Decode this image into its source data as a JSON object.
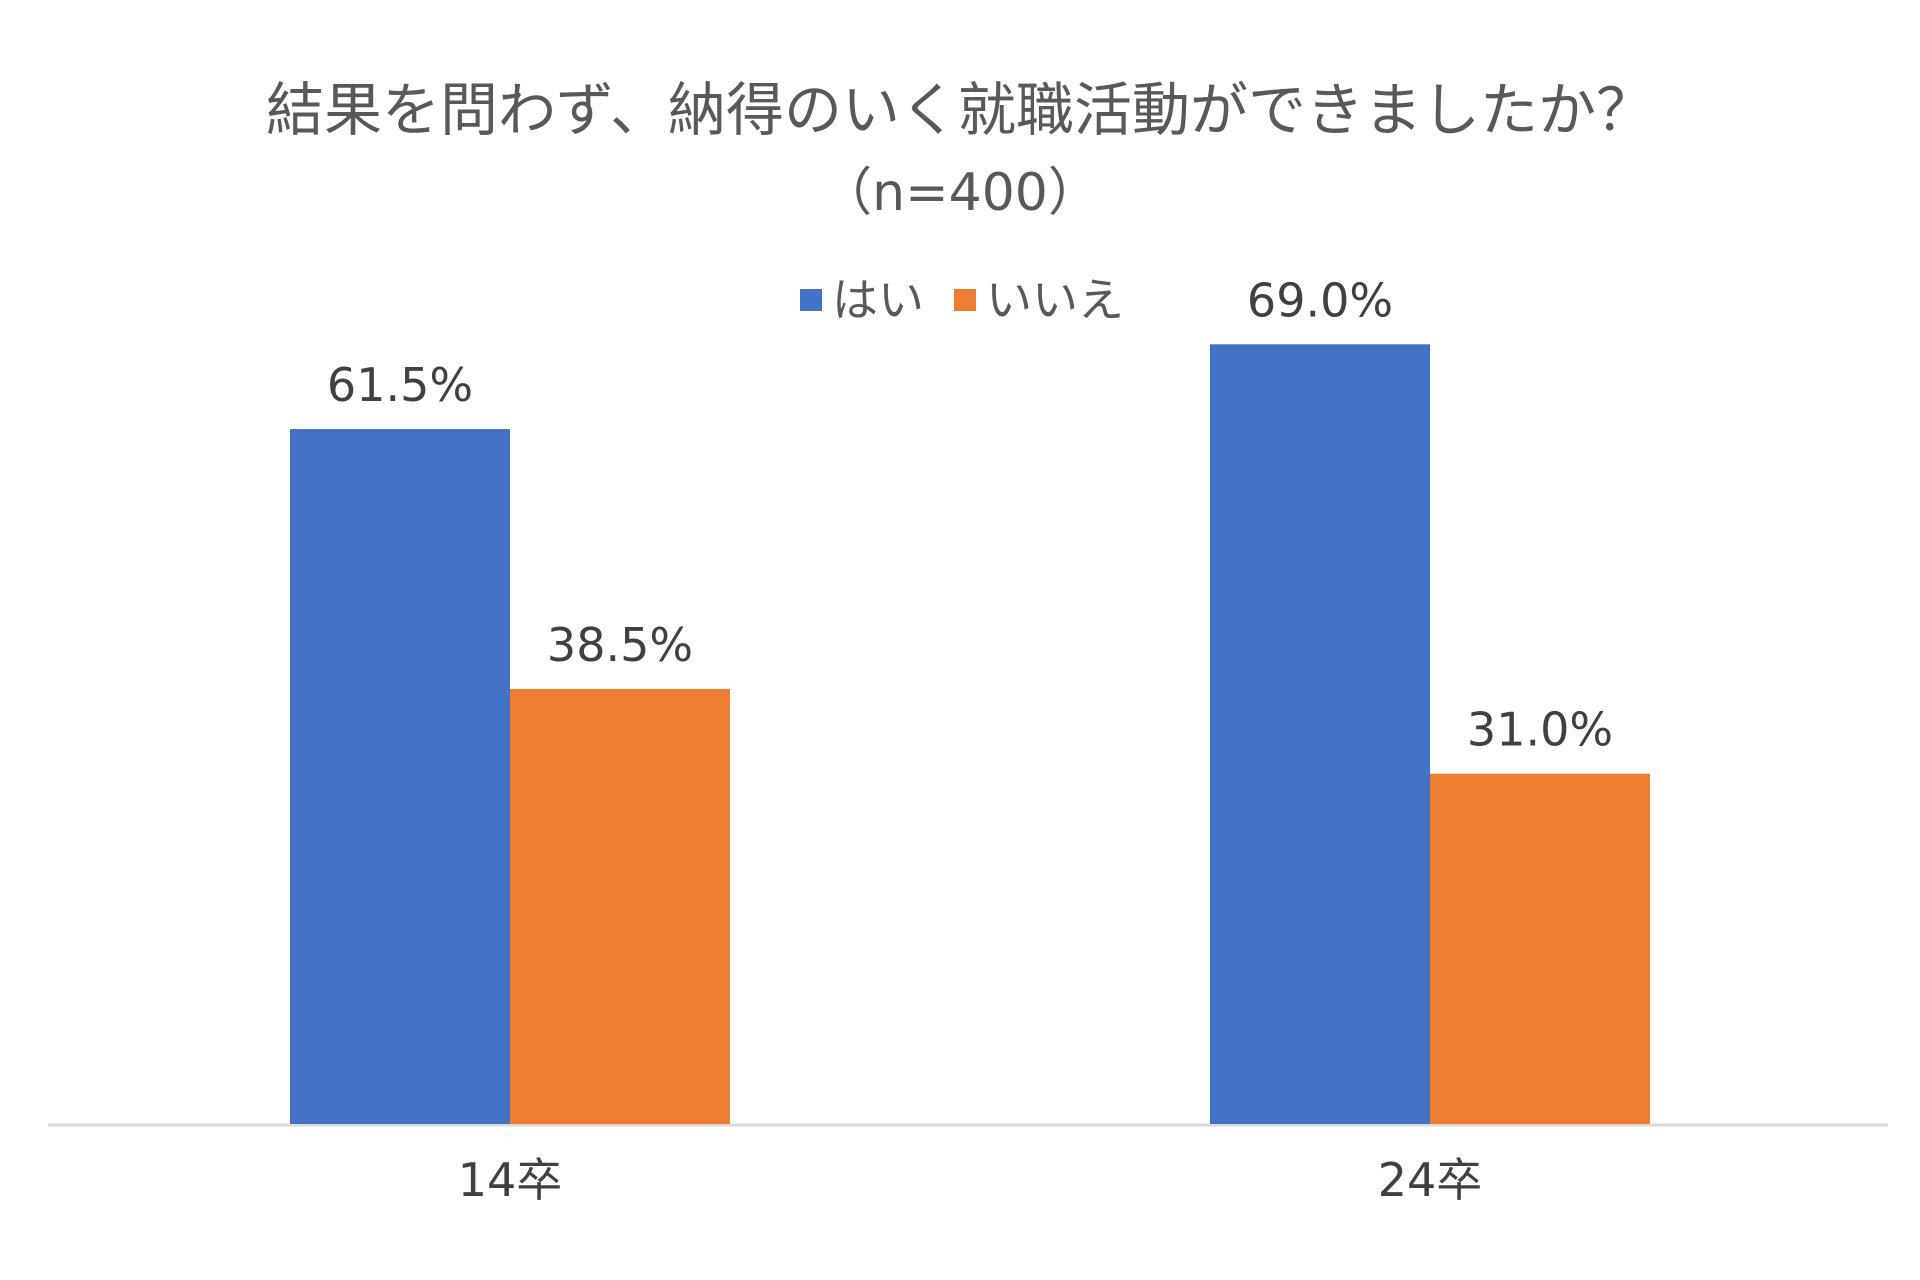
{
  "chart_data": {
    "type": "bar",
    "title": "結果を問わず、納得のいく就職活動ができましたか？",
    "subtitle": "（n=400）",
    "categories": [
      "14卒",
      "24卒"
    ],
    "series": [
      {
        "name": "はい",
        "values": [
          61.5,
          69.0
        ],
        "labels": [
          "61.5%",
          "69.0%"
        ],
        "color": "#4472C4"
      },
      {
        "name": "いいえ",
        "values": [
          38.5,
          31.0
        ],
        "labels": [
          "38.5%",
          "31.0%"
        ],
        "color": "#ED7D31"
      }
    ],
    "ylim": [
      0,
      100
    ],
    "y_axis_visible": false,
    "grid": false,
    "legend_position": "top",
    "axis_color": "#D9D9D9"
  }
}
